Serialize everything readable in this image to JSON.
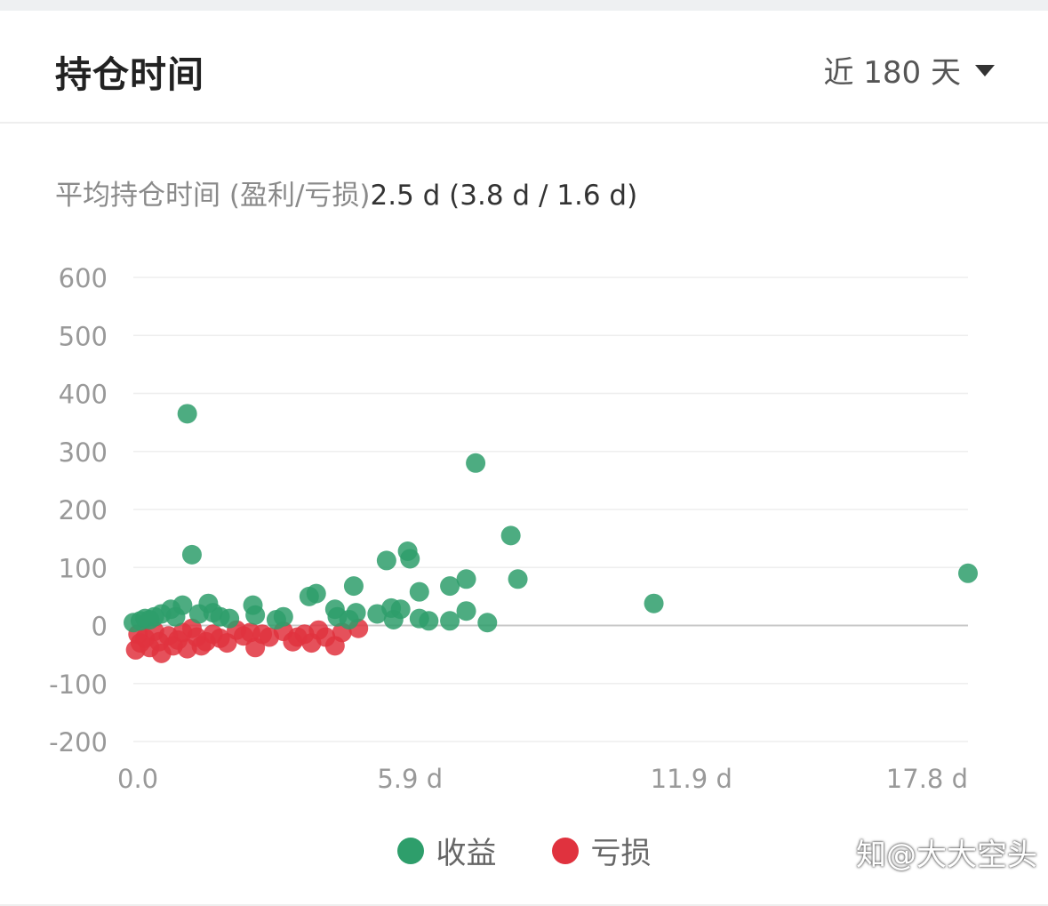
{
  "header": {
    "title": "持仓时间",
    "period_label": "近 180 天"
  },
  "summary": {
    "label": "平均持仓时间 (盈利/亏损)",
    "value": "2.5 d (3.8 d / 1.6 d)"
  },
  "legend": {
    "profit": "收益",
    "loss": "亏损"
  },
  "watermark": "知@大大空头",
  "colors": {
    "profit": "#2e9e6b",
    "loss": "#e0323e",
    "grid": "#eeeeee",
    "zero_line": "#c8c8c8",
    "tick_text": "#999999"
  },
  "chart_data": {
    "type": "scatter",
    "xlabel": "",
    "ylabel": "",
    "ylim": [
      -200,
      600
    ],
    "xlim": [
      0,
      17.8
    ],
    "x_ticks": [
      0,
      5.9,
      11.9,
      17.8
    ],
    "x_tick_labels": [
      "0.0",
      "5.9 d",
      "11.9 d",
      "17.8 d"
    ],
    "y_ticks": [
      600,
      500,
      400,
      300,
      200,
      100,
      0,
      -100,
      -200
    ],
    "y_tick_labels": [
      "600",
      "500",
      "400",
      "300",
      "200",
      "100",
      "0",
      "-100",
      "-200"
    ],
    "grid": true,
    "legend_position": "bottom",
    "series": [
      {
        "name": "收益",
        "points": [
          [
            0.0,
            5
          ],
          [
            0.15,
            8
          ],
          [
            0.25,
            12
          ],
          [
            0.35,
            10
          ],
          [
            0.45,
            15
          ],
          [
            0.6,
            20
          ],
          [
            0.8,
            28
          ],
          [
            0.9,
            15
          ],
          [
            1.05,
            35
          ],
          [
            1.15,
            365
          ],
          [
            1.25,
            122
          ],
          [
            1.4,
            20
          ],
          [
            1.6,
            38
          ],
          [
            1.7,
            22
          ],
          [
            1.85,
            15
          ],
          [
            2.05,
            12
          ],
          [
            2.55,
            35
          ],
          [
            2.6,
            18
          ],
          [
            3.05,
            10
          ],
          [
            3.2,
            15
          ],
          [
            3.75,
            50
          ],
          [
            3.9,
            55
          ],
          [
            4.3,
            28
          ],
          [
            4.35,
            15
          ],
          [
            4.6,
            10
          ],
          [
            4.7,
            68
          ],
          [
            4.75,
            22
          ],
          [
            5.2,
            20
          ],
          [
            5.4,
            112
          ],
          [
            5.5,
            30
          ],
          [
            5.55,
            10
          ],
          [
            5.7,
            28
          ],
          [
            5.85,
            128
          ],
          [
            5.9,
            115
          ],
          [
            6.1,
            58
          ],
          [
            6.1,
            12
          ],
          [
            6.3,
            8
          ],
          [
            6.75,
            68
          ],
          [
            6.75,
            8
          ],
          [
            7.1,
            80
          ],
          [
            7.1,
            25
          ],
          [
            7.3,
            280
          ],
          [
            7.55,
            5
          ],
          [
            8.05,
            155
          ],
          [
            8.2,
            80
          ],
          [
            11.1,
            38
          ],
          [
            17.8,
            90
          ]
        ]
      },
      {
        "name": "亏损",
        "points": [
          [
            0.05,
            -42
          ],
          [
            0.1,
            -15
          ],
          [
            0.15,
            -30
          ],
          [
            0.25,
            -22
          ],
          [
            0.35,
            -38
          ],
          [
            0.45,
            -10
          ],
          [
            0.55,
            -28
          ],
          [
            0.6,
            -48
          ],
          [
            0.75,
            -18
          ],
          [
            0.85,
            -35
          ],
          [
            0.95,
            -25
          ],
          [
            1.05,
            -12
          ],
          [
            1.15,
            -40
          ],
          [
            1.25,
            -5
          ],
          [
            1.35,
            -20
          ],
          [
            1.45,
            -35
          ],
          [
            1.55,
            -28
          ],
          [
            1.7,
            -15
          ],
          [
            1.85,
            -22
          ],
          [
            2.0,
            -30
          ],
          [
            2.2,
            -8
          ],
          [
            2.35,
            -18
          ],
          [
            2.5,
            -12
          ],
          [
            2.6,
            -38
          ],
          [
            2.75,
            -15
          ],
          [
            2.9,
            -20
          ],
          [
            3.2,
            -10
          ],
          [
            3.4,
            -28
          ],
          [
            3.5,
            -20
          ],
          [
            3.65,
            -15
          ],
          [
            3.8,
            -30
          ],
          [
            3.95,
            -8
          ],
          [
            4.1,
            -20
          ],
          [
            4.3,
            -35
          ],
          [
            4.45,
            -12
          ],
          [
            4.8,
            -5
          ]
        ]
      }
    ]
  }
}
